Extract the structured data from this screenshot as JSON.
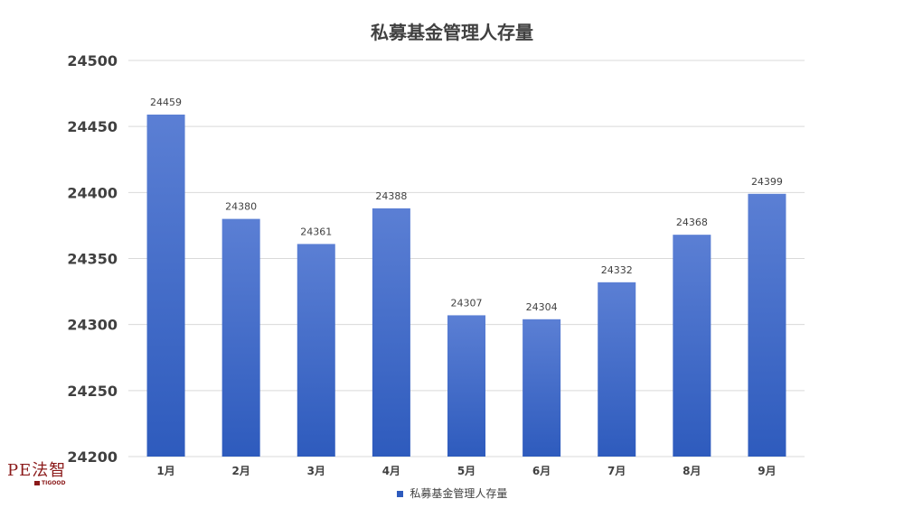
{
  "chart_data": {
    "type": "bar",
    "title": "私募基金管理人存量",
    "categories": [
      "1月",
      "2月",
      "3月",
      "4月",
      "5月",
      "6月",
      "7月",
      "8月",
      "9月"
    ],
    "series": [
      {
        "name": "私募基金管理人存量",
        "values": [
          24459,
          24380,
          24361,
          24388,
          24307,
          24304,
          24332,
          24368,
          24399
        ]
      }
    ],
    "ylim": [
      24200,
      24500
    ],
    "yticks": [
      24200,
      24250,
      24300,
      24350,
      24400,
      24450,
      24500
    ],
    "xlabel": "",
    "ylabel": "",
    "grid": true,
    "legend": "bottom",
    "colors": {
      "bar_top": "#5b7fd4",
      "bar_bottom": "#2e5bbd",
      "grid": "#d9d9d9",
      "text": "#404040"
    }
  },
  "logo": {
    "main": "PE法智",
    "sub": "TIGOOD"
  }
}
